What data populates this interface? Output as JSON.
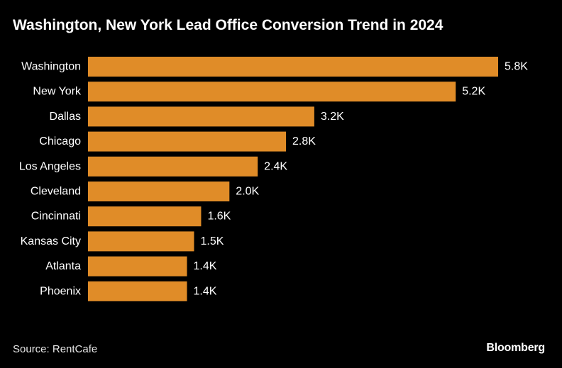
{
  "header": {
    "title": "Washington, New York Lead Office Conversion Trend in 2024"
  },
  "footer": {
    "source": "Source: RentCafe",
    "logo": "Bloomberg"
  },
  "colors": {
    "background": "#000000",
    "bar": "#e08c28",
    "text": "#ffffff"
  },
  "chart_data": {
    "type": "bar",
    "orientation": "horizontal",
    "categories": [
      "Washington",
      "New York",
      "Dallas",
      "Chicago",
      "Los Angeles",
      "Cleveland",
      "Cincinnati",
      "Kansas City",
      "Atlanta",
      "Phoenix"
    ],
    "values": [
      5800,
      5200,
      3200,
      2800,
      2400,
      2000,
      1600,
      1500,
      1400,
      1400
    ],
    "data_labels": [
      "5.8K",
      "5.2K",
      "3.2K",
      "2.8K",
      "2.4K",
      "2.0K",
      "1.6K",
      "1.5K",
      "1.4K",
      "1.4K"
    ],
    "title": "Washington, New York Lead Office Conversion Trend in 2024",
    "xlabel": "",
    "ylabel": "",
    "xlim": [
      0,
      5800
    ],
    "grid": false,
    "legend": "none"
  }
}
